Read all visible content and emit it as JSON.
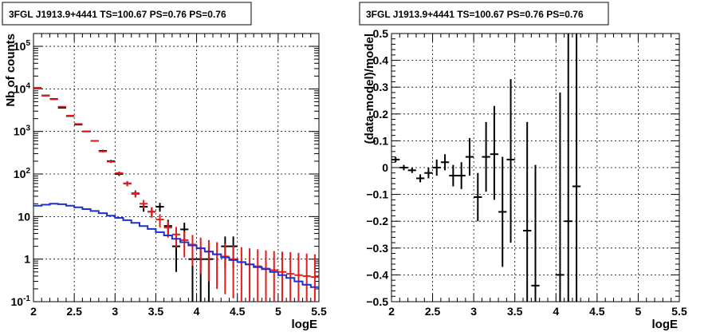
{
  "chart_data": [
    {
      "type": "scatter",
      "title": "3FGL J1913.9+4441 TS=100.67 PS=0.76 PS=0.76",
      "xlabel": "logE",
      "ylabel": "Nb of counts",
      "xlim": [
        2,
        5.5
      ],
      "ylim": [
        0.1,
        200000
      ],
      "yscale": "log",
      "grid": true,
      "xticks": [
        {
          "v": 2,
          "label": "2"
        },
        {
          "v": 2.5,
          "label": "2.5"
        },
        {
          "v": 3,
          "label": "3"
        },
        {
          "v": 3.5,
          "label": "3.5"
        },
        {
          "v": 4,
          "label": "4"
        },
        {
          "v": 4.5,
          "label": "4.5"
        },
        {
          "v": 5,
          "label": "5"
        },
        {
          "v": 5.5,
          "label": "5.5"
        }
      ],
      "yticks": [
        {
          "v": 0.1,
          "label": "10^-1"
        },
        {
          "v": 1,
          "label": "1"
        },
        {
          "v": 10,
          "label": "10"
        },
        {
          "v": 100,
          "label": "10^2"
        },
        {
          "v": 1000,
          "label": "10^3"
        },
        {
          "v": 10000,
          "label": "10^4"
        },
        {
          "v": 100000,
          "label": "10^5"
        }
      ],
      "bin_width": 0.1,
      "series": [
        {
          "color": "#000000",
          "style": "errorbars",
          "points": [
            {
              "x": 2.05,
              "y": 10500,
              "lo": 10400,
              "hi": 10600
            },
            {
              "x": 2.15,
              "y": 7000,
              "lo": 6900,
              "hi": 7100
            },
            {
              "x": 2.25,
              "y": 5800,
              "lo": 5720,
              "hi": 5880
            },
            {
              "x": 2.35,
              "y": 3600,
              "lo": 3540,
              "hi": 3660
            },
            {
              "x": 2.45,
              "y": 2300,
              "lo": 2250,
              "hi": 2350
            },
            {
              "x": 2.55,
              "y": 1450,
              "lo": 1410,
              "hi": 1490
            },
            {
              "x": 2.65,
              "y": 1000,
              "lo": 970,
              "hi": 1030
            },
            {
              "x": 2.75,
              "y": 600,
              "lo": 575,
              "hi": 625
            },
            {
              "x": 2.85,
              "y": 350,
              "lo": 330,
              "hi": 370
            },
            {
              "x": 2.95,
              "y": 200,
              "lo": 185,
              "hi": 215
            },
            {
              "x": 3.05,
              "y": 100,
              "lo": 90,
              "hi": 110
            },
            {
              "x": 3.15,
              "y": 60,
              "lo": 52,
              "hi": 68
            },
            {
              "x": 3.25,
              "y": 35,
              "lo": 29,
              "hi": 41
            },
            {
              "x": 3.35,
              "y": 17,
              "lo": 13,
              "hi": 21
            },
            {
              "x": 3.45,
              "y": 13,
              "lo": 9.5,
              "hi": 16.5
            },
            {
              "x": 3.55,
              "y": 17,
              "lo": 13,
              "hi": 21
            },
            {
              "x": 3.65,
              "y": 6,
              "lo": 3.6,
              "hi": 8.4
            },
            {
              "x": 3.75,
              "y": 2,
              "lo": 0.5,
              "hi": 3.5
            },
            {
              "x": 3.85,
              "y": 5,
              "lo": 2.8,
              "hi": 7.2
            },
            {
              "x": 3.95,
              "y": 1,
              "lo": 0.08,
              "hi": 2
            },
            {
              "x": 4.05,
              "y": 1,
              "lo": 0.08,
              "hi": 2
            },
            {
              "x": 4.15,
              "y": 1,
              "lo": 0.08,
              "hi": 2
            },
            {
              "x": 4.35,
              "y": 2,
              "lo": 0.6,
              "hi": 3.4
            },
            {
              "x": 4.45,
              "y": 2,
              "lo": 0.6,
              "hi": 3.4
            }
          ]
        },
        {
          "color": "#e41a1c",
          "style": "errorbars",
          "points": [
            {
              "x": 2.05,
              "y": 10300,
              "lo": 10200,
              "hi": 10400
            },
            {
              "x": 2.15,
              "y": 6900,
              "lo": 6820,
              "hi": 6980
            },
            {
              "x": 2.25,
              "y": 5700,
              "lo": 5620,
              "hi": 5780
            },
            {
              "x": 2.35,
              "y": 3800,
              "lo": 3740,
              "hi": 3860
            },
            {
              "x": 2.45,
              "y": 2350,
              "lo": 2300,
              "hi": 2400
            },
            {
              "x": 2.55,
              "y": 1500,
              "lo": 1460,
              "hi": 1540
            },
            {
              "x": 2.65,
              "y": 1000,
              "lo": 970,
              "hi": 1030
            },
            {
              "x": 2.75,
              "y": 600,
              "lo": 575,
              "hi": 625
            },
            {
              "x": 2.85,
              "y": 340,
              "lo": 322,
              "hi": 358
            },
            {
              "x": 2.95,
              "y": 195,
              "lo": 181,
              "hi": 209
            },
            {
              "x": 3.05,
              "y": 105,
              "lo": 95,
              "hi": 115
            },
            {
              "x": 3.15,
              "y": 60,
              "lo": 52,
              "hi": 68
            },
            {
              "x": 3.25,
              "y": 34,
              "lo": 28,
              "hi": 40
            },
            {
              "x": 3.35,
              "y": 20,
              "lo": 15.5,
              "hi": 24.5
            },
            {
              "x": 3.45,
              "y": 13,
              "lo": 9.4,
              "hi": 16.6
            },
            {
              "x": 3.55,
              "y": 8.5,
              "lo": 5.6,
              "hi": 11.4
            },
            {
              "x": 3.65,
              "y": 5.5,
              "lo": 3.2,
              "hi": 7.8
            },
            {
              "x": 3.75,
              "y": 3.8,
              "lo": 1.9,
              "hi": 5.7
            },
            {
              "x": 3.85,
              "y": 2.8,
              "lo": 1.1,
              "hi": 4.5
            },
            {
              "x": 3.95,
              "y": 2.2,
              "lo": 0.7,
              "hi": 3.7
            },
            {
              "x": 4.05,
              "y": 1.8,
              "lo": 0.45,
              "hi": 3.2
            },
            {
              "x": 4.15,
              "y": 1.5,
              "lo": 0.3,
              "hi": 2.8
            },
            {
              "x": 4.25,
              "y": 1.3,
              "lo": 0.2,
              "hi": 2.5
            },
            {
              "x": 4.35,
              "y": 1.15,
              "lo": 0.15,
              "hi": 2.3
            },
            {
              "x": 4.45,
              "y": 1.0,
              "lo": 0.12,
              "hi": 2.1
            },
            {
              "x": 4.55,
              "y": 0.85,
              "lo": 0.1,
              "hi": 1.9
            },
            {
              "x": 4.65,
              "y": 0.75,
              "lo": 0.1,
              "hi": 1.8
            },
            {
              "x": 4.75,
              "y": 0.68,
              "lo": 0.1,
              "hi": 1.7
            },
            {
              "x": 4.85,
              "y": 0.6,
              "lo": 0.1,
              "hi": 1.6
            },
            {
              "x": 4.95,
              "y": 0.55,
              "lo": 0.1,
              "hi": 1.55
            },
            {
              "x": 5.05,
              "y": 0.5,
              "lo": 0.1,
              "hi": 1.5
            },
            {
              "x": 5.15,
              "y": 0.45,
              "lo": 0.1,
              "hi": 1.45
            },
            {
              "x": 5.25,
              "y": 0.42,
              "lo": 0.1,
              "hi": 1.4
            },
            {
              "x": 5.35,
              "y": 0.4,
              "lo": 0.1,
              "hi": 1.35
            },
            {
              "x": 5.45,
              "y": 0.38,
              "lo": 0.1,
              "hi": 1.3
            }
          ]
        },
        {
          "color": "#1f2fd0",
          "style": "step",
          "x": [
            2.0,
            2.05,
            2.15,
            2.25,
            2.35,
            2.45,
            2.55,
            2.65,
            2.75,
            2.85,
            2.95,
            3.05,
            3.15,
            3.25,
            3.35,
            3.45,
            3.55,
            3.65,
            3.75,
            3.85,
            3.95,
            4.05,
            4.15,
            4.25,
            4.35,
            4.45,
            4.55,
            4.65,
            4.75,
            4.85,
            4.95,
            5.05,
            5.15,
            5.25,
            5.35,
            5.45
          ],
          "values": [
            17,
            18,
            19,
            20,
            19.5,
            18,
            16.5,
            15,
            13.5,
            12,
            10.5,
            9.3,
            8.2,
            7.1,
            6.0,
            5.1,
            4.3,
            3.6,
            3.0,
            2.5,
            2.1,
            1.8,
            1.5,
            1.3,
            1.1,
            0.95,
            0.85,
            0.75,
            0.65,
            0.58,
            0.5,
            0.42,
            0.36,
            0.3,
            0.25,
            0.22
          ]
        }
      ]
    },
    {
      "type": "scatter",
      "title": "3FGL J1913.9+4441 TS=100.67 PS=0.76 PS=0.76",
      "xlabel": "logE",
      "ylabel": "(data-model)/model",
      "xlim": [
        2,
        5.5
      ],
      "ylim": [
        -0.5,
        0.5
      ],
      "grid": true,
      "xticks": [
        {
          "v": 2,
          "label": "2"
        },
        {
          "v": 2.5,
          "label": "2.5"
        },
        {
          "v": 3,
          "label": "3"
        },
        {
          "v": 3.5,
          "label": "3.5"
        },
        {
          "v": 4,
          "label": "4"
        },
        {
          "v": 4.5,
          "label": "4.5"
        },
        {
          "v": 5,
          "label": "5"
        },
        {
          "v": 5.5,
          "label": "5.5"
        }
      ],
      "yticks": [
        {
          "v": -0.5,
          "label": "−0.5"
        },
        {
          "v": -0.4,
          "label": "−0.4"
        },
        {
          "v": -0.3,
          "label": "−0.3"
        },
        {
          "v": -0.2,
          "label": "−0.2"
        },
        {
          "v": -0.1,
          "label": "−0.1"
        },
        {
          "v": 0,
          "label": "0"
        },
        {
          "v": 0.1,
          "label": "0.1"
        },
        {
          "v": 0.2,
          "label": "0.2"
        },
        {
          "v": 0.3,
          "label": "0.3"
        },
        {
          "v": 0.4,
          "label": "0.4"
        },
        {
          "v": 0.5,
          "label": "0.5"
        }
      ],
      "bin_width": 0.1,
      "series": [
        {
          "color": "#000000",
          "style": "errorbars",
          "points": [
            {
              "x": 2.05,
              "y": 0.03,
              "lo": 0.02,
              "hi": 0.04
            },
            {
              "x": 2.15,
              "y": 0.0,
              "lo": -0.01,
              "hi": 0.01
            },
            {
              "x": 2.25,
              "y": -0.01,
              "lo": -0.02,
              "hi": 0.0
            },
            {
              "x": 2.35,
              "y": -0.04,
              "lo": -0.055,
              "hi": -0.025
            },
            {
              "x": 2.45,
              "y": -0.02,
              "lo": -0.04,
              "hi": 0.0
            },
            {
              "x": 2.55,
              "y": 0.0,
              "lo": -0.03,
              "hi": 0.03
            },
            {
              "x": 2.65,
              "y": 0.02,
              "lo": -0.01,
              "hi": 0.05
            },
            {
              "x": 2.75,
              "y": -0.03,
              "lo": -0.07,
              "hi": 0.01
            },
            {
              "x": 2.85,
              "y": -0.03,
              "lo": -0.08,
              "hi": 0.02
            },
            {
              "x": 2.95,
              "y": 0.04,
              "lo": -0.03,
              "hi": 0.11
            },
            {
              "x": 3.05,
              "y": -0.11,
              "lo": -0.2,
              "hi": -0.02
            },
            {
              "x": 3.15,
              "y": 0.04,
              "lo": -0.09,
              "hi": 0.17
            },
            {
              "x": 3.25,
              "y": 0.05,
              "lo": -0.12,
              "hi": 0.23
            },
            {
              "x": 3.35,
              "y": -0.165,
              "lo": -0.37,
              "hi": 0.04
            },
            {
              "x": 3.45,
              "y": 0.03,
              "lo": -0.28,
              "hi": 0.33
            },
            {
              "x": 3.65,
              "y": -0.235,
              "lo": -0.5,
              "hi": 0.17
            },
            {
              "x": 3.75,
              "y": -0.44,
              "lo": -0.5,
              "hi": 0.01
            },
            {
              "x": 4.05,
              "y": -0.4,
              "lo": -0.5,
              "hi": 0.28
            },
            {
              "x": 4.15,
              "y": -0.2,
              "lo": -0.5,
              "hi": 0.5
            },
            {
              "x": 4.25,
              "y": -0.07,
              "lo": -0.5,
              "hi": 0.5
            }
          ]
        }
      ]
    }
  ]
}
